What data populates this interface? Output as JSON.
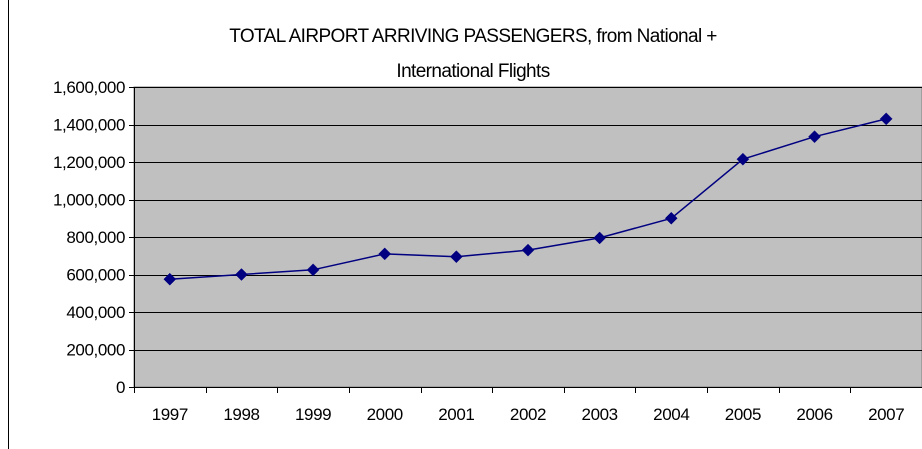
{
  "chart_data": {
    "type": "line",
    "title_lines": [
      "TOTAL AIRPORT ARRIVING PASSENGERS, from National +",
      "International Flights"
    ],
    "categories": [
      "1997",
      "1998",
      "1999",
      "2000",
      "2001",
      "2002",
      "2003",
      "2004",
      "2005",
      "2006",
      "2007"
    ],
    "series": [
      {
        "values": [
          575000,
          600000,
          625000,
          710000,
          695000,
          730000,
          795000,
          900000,
          1215000,
          1335000,
          1430000
        ]
      }
    ],
    "y_ticks": [
      "0",
      "200,000",
      "400,000",
      "600,000",
      "800,000",
      "1,000,000",
      "1,200,000",
      "1,400,000",
      "1,600,000"
    ],
    "ylim": [
      0,
      1600000
    ],
    "grid": "horizontal",
    "legend": "none",
    "colors": {
      "plot_background": "#c0c0c0",
      "line": "#000080",
      "marker": "#000080",
      "gridline": "#000000",
      "page_background": "#ffffff"
    }
  }
}
